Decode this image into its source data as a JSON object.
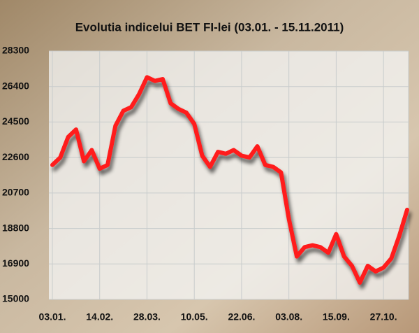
{
  "chart_data": {
    "type": "line",
    "title": "Evolutia indicelui BET FI-lei  (03.01. - 15.11.2011)",
    "categories": [
      "03.01.",
      null,
      null,
      null,
      null,
      null,
      "14.02.",
      null,
      null,
      null,
      null,
      null,
      "28.03.",
      null,
      null,
      null,
      null,
      null,
      "10.05.",
      null,
      null,
      null,
      null,
      null,
      "22.06.",
      null,
      null,
      null,
      null,
      null,
      "03.08.",
      null,
      null,
      null,
      null,
      null,
      "15.09.",
      null,
      null,
      null,
      null,
      null,
      "27.10.",
      null,
      null,
      null
    ],
    "values": [
      22200,
      22600,
      23700,
      24100,
      22400,
      23000,
      22000,
      22200,
      24300,
      25100,
      25300,
      26000,
      26900,
      26700,
      26800,
      25500,
      25200,
      25000,
      24400,
      22700,
      22100,
      22900,
      22800,
      23000,
      22700,
      22600,
      23200,
      22200,
      22100,
      21800,
      19300,
      17300,
      17800,
      17900,
      17800,
      17500,
      18500,
      17300,
      16800,
      15900,
      16800,
      16500,
      16700,
      17200,
      18400,
      19800
    ],
    "color": "#ff1a1a",
    "ylim": [
      15000,
      28300
    ],
    "yticks": [
      15000,
      16900,
      18800,
      20700,
      22600,
      24500,
      26400,
      28300
    ],
    "grid": true
  }
}
